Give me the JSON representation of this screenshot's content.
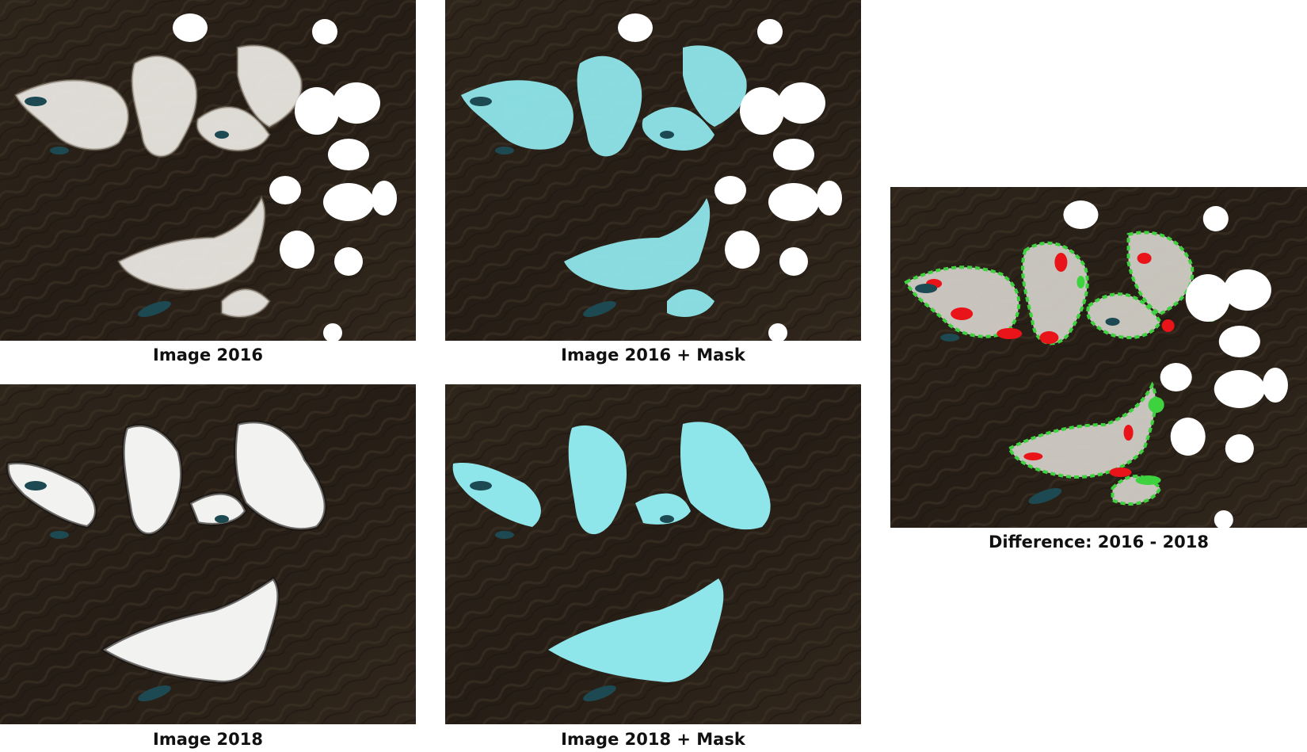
{
  "figure": {
    "panels": [
      {
        "id": "image-2016",
        "caption": "Image 2016"
      },
      {
        "id": "image-2016-mask",
        "caption": "Image 2016 + Mask"
      },
      {
        "id": "image-2018",
        "caption": "Image 2018"
      },
      {
        "id": "image-2018-mask",
        "caption": "Image 2018 + Mask"
      },
      {
        "id": "difference",
        "caption": "Difference: 2016 - 2018"
      }
    ],
    "colors": {
      "terrain": "#2a2118",
      "terrain_light": "#4a3d2e",
      "snow": "#f4f4f2",
      "cloud": "#ffffff",
      "lake": "#1d4a52",
      "glacier_mask": "#8fe6ea",
      "loss": "#e8141a",
      "gain": "#3fd23f"
    }
  }
}
